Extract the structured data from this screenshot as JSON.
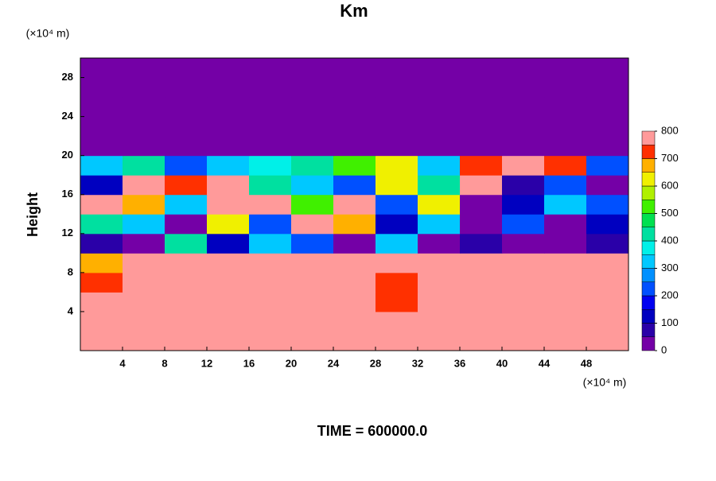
{
  "chart_data": {
    "type": "heatmap",
    "title": "Km",
    "ylabel": "Height",
    "x_unit_label": "(×10⁴ m)",
    "y_unit_label": "(×10⁴ m)",
    "footer": "TIME = 600000.0",
    "xlim": [
      0,
      52
    ],
    "ylim": [
      0,
      30
    ],
    "xticks": [
      4,
      8,
      12,
      16,
      20,
      24,
      28,
      32,
      36,
      40,
      44,
      48
    ],
    "yticks": [
      4,
      8,
      12,
      16,
      20,
      24,
      28
    ],
    "x": [
      2,
      6,
      10,
      14,
      18,
      22,
      26,
      30,
      34,
      38,
      42,
      46,
      50
    ],
    "y": [
      1,
      3,
      5,
      7,
      9,
      11,
      13,
      15,
      17,
      19,
      21,
      23,
      25,
      27,
      29
    ],
    "z": [
      [
        800,
        800,
        800,
        800,
        800,
        800,
        800,
        800,
        800,
        800,
        800,
        800,
        800
      ],
      [
        800,
        800,
        800,
        800,
        800,
        800,
        800,
        750,
        800,
        800,
        750,
        800,
        800
      ],
      [
        800,
        800,
        800,
        800,
        800,
        750,
        800,
        700,
        800,
        800,
        800,
        750,
        800
      ],
      [
        700,
        800,
        800,
        800,
        800,
        750,
        750,
        700,
        800,
        800,
        800,
        750,
        800
      ],
      [
        650,
        800,
        800,
        800,
        800,
        800,
        800,
        800,
        800,
        800,
        800,
        800,
        750
      ],
      [
        50,
        0,
        400,
        100,
        300,
        200,
        0,
        300,
        0,
        50,
        0,
        0,
        50
      ],
      [
        400,
        300,
        0,
        600,
        200,
        800,
        650,
        100,
        300,
        0,
        200,
        0,
        100
      ],
      [
        800,
        650,
        300,
        800,
        800,
        500,
        800,
        200,
        600,
        0,
        100,
        300,
        200
      ],
      [
        100,
        800,
        700,
        800,
        400,
        300,
        200,
        600,
        400,
        800,
        50,
        200,
        0
      ],
      [
        300,
        400,
        200,
        300,
        350,
        400,
        500,
        600,
        300,
        700,
        750,
        700,
        200
      ],
      [
        0,
        0,
        0,
        0,
        0,
        0,
        0,
        0,
        0,
        0,
        0,
        0,
        0
      ],
      [
        0,
        0,
        0,
        0,
        0,
        0,
        0,
        0,
        0,
        0,
        0,
        0,
        0
      ],
      [
        0,
        0,
        0,
        0,
        0,
        0,
        0,
        0,
        0,
        0,
        0,
        0,
        0
      ],
      [
        0,
        0,
        0,
        0,
        0,
        0,
        0,
        0,
        0,
        0,
        0,
        0,
        0
      ],
      [
        0,
        0,
        0,
        0,
        0,
        0,
        0,
        0,
        0,
        0,
        0,
        0,
        0
      ]
    ],
    "colorbar_lim": [
      0,
      800
    ],
    "colorbar_ticks": [
      0,
      100,
      200,
      300,
      400,
      500,
      600,
      700,
      800
    ],
    "colors": [
      "#7400a6",
      "#2a00a8",
      "#0000c0",
      "#0000f0",
      "#0050ff",
      "#0090ff",
      "#00c8ff",
      "#00f0e8",
      "#00e0a0",
      "#00e050",
      "#40f000",
      "#b0f000",
      "#f0f000",
      "#ffb000",
      "#ff3000",
      "#ff9a9a"
    ]
  }
}
